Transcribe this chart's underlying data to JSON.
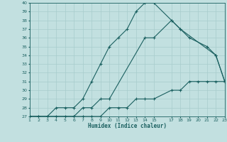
{
  "xlabel": "Humidex (Indice chaleur)",
  "bg_color": "#c2e0e0",
  "grid_color": "#a8cccc",
  "line_color": "#1a6060",
  "xlim": [
    1,
    23
  ],
  "ylim": [
    27,
    40
  ],
  "xticks": [
    1,
    2,
    3,
    4,
    5,
    6,
    7,
    8,
    9,
    10,
    11,
    12,
    13,
    14,
    15,
    17,
    18,
    19,
    20,
    21,
    22,
    23
  ],
  "yticks": [
    27,
    28,
    29,
    30,
    31,
    32,
    33,
    34,
    35,
    36,
    37,
    38,
    39,
    40
  ],
  "line1_x": [
    1,
    2,
    3,
    4,
    5,
    6,
    7,
    8,
    9,
    10,
    11,
    12,
    13,
    14,
    15,
    17,
    18,
    22,
    23
  ],
  "line1_y": [
    27,
    27,
    27,
    28,
    28,
    28,
    29,
    31,
    33,
    35,
    36,
    37,
    39,
    40,
    40,
    38,
    37,
    34,
    31
  ],
  "line2_x": [
    1,
    6,
    7,
    8,
    9,
    10,
    14,
    15,
    17,
    18,
    19,
    21,
    22,
    23
  ],
  "line2_y": [
    27,
    27,
    28,
    28,
    29,
    29,
    36,
    36,
    38,
    37,
    36,
    35,
    34,
    31
  ],
  "line3_x": [
    1,
    2,
    3,
    4,
    5,
    6,
    7,
    8,
    9,
    10,
    11,
    12,
    13,
    14,
    15,
    17,
    18,
    19,
    20,
    21,
    22,
    23
  ],
  "line3_y": [
    27,
    27,
    27,
    27,
    27,
    27,
    27,
    27,
    27,
    28,
    28,
    28,
    29,
    29,
    29,
    30,
    30,
    31,
    31,
    31,
    31,
    31
  ]
}
